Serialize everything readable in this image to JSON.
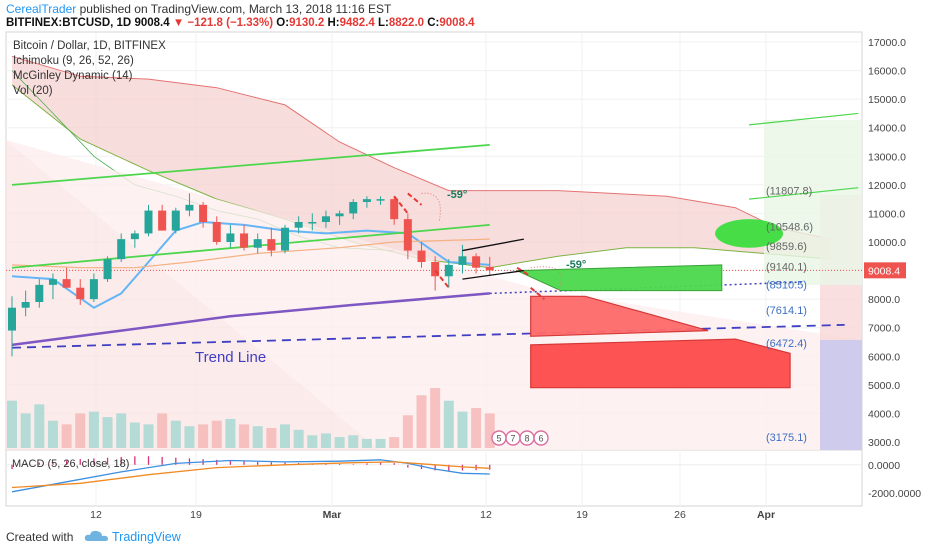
{
  "header": {
    "author": "CerealTrader",
    "published_text": "published on TradingView.com, March 13, 2018 11:16 EST",
    "symbol": "BITFINEX:BTCUSD, 1D",
    "last": "9008.4",
    "change": "−121.8 (−1.33%)",
    "o_label": "O:",
    "o_value": "9130.2",
    "h_label": "H:",
    "h_value": "9482.4",
    "l_label": "L:",
    "l_value": "8822.0",
    "c_label": "C:",
    "c_value": "9008.4"
  },
  "legend": {
    "title": "Bitcoin / Dollar, 1D, BITFINEX",
    "ichimoku": "Ichimoku (9, 26, 52, 26)",
    "mcginley": "McGinley Dynamic (14)",
    "vol": "Vol (20)"
  },
  "footer": {
    "created_with": "Created with",
    "brand": "TradingView"
  },
  "colors": {
    "up": "#26a69a",
    "down": "#ef5350",
    "cloud": "#f6d2d2",
    "mcginley": "#7e57c2",
    "tenkan": "#64b5f6",
    "kijun": "#f4b183",
    "channel": "#4cd64c",
    "trend": "#3f3fc4"
  },
  "chart_data": [
    {
      "type": "line",
      "title": "",
      "yaxis": {
        "ylim": [
          2700,
          17400
        ],
        "ticks": [
          "17000.0",
          "16000.0",
          "15000.0",
          "14000.0",
          "13000.0",
          "12000.0",
          "11000.0",
          "10000.0",
          "9000.0",
          "8000.0",
          "7000.0",
          "6000.0",
          "5000.0",
          "4000.0",
          "3000.0"
        ],
        "position": "right"
      },
      "xaxis": {
        "ticks": [
          "12",
          "19",
          "Mar",
          "12",
          "19",
          "26",
          "Apr"
        ]
      },
      "last_price_label": "9008.4",
      "candles": [
        {
          "d": 0,
          "o": 6900,
          "h": 8100,
          "l": 6000,
          "c": 7700
        },
        {
          "d": 1,
          "o": 7700,
          "h": 8300,
          "l": 7400,
          "c": 7900
        },
        {
          "d": 2,
          "o": 7900,
          "h": 8700,
          "l": 7700,
          "c": 8500
        },
        {
          "d": 3,
          "o": 8500,
          "h": 8900,
          "l": 8000,
          "c": 8700
        },
        {
          "d": 4,
          "o": 8700,
          "h": 9100,
          "l": 8400,
          "c": 8400
        },
        {
          "d": 5,
          "o": 8400,
          "h": 8700,
          "l": 7800,
          "c": 8000
        },
        {
          "d": 6,
          "o": 8000,
          "h": 8900,
          "l": 7900,
          "c": 8700
        },
        {
          "d": 7,
          "o": 8700,
          "h": 9500,
          "l": 8600,
          "c": 9400
        },
        {
          "d": 8,
          "o": 9400,
          "h": 10300,
          "l": 9300,
          "c": 10100
        },
        {
          "d": 9,
          "o": 10100,
          "h": 10400,
          "l": 9800,
          "c": 10300
        },
        {
          "d": 10,
          "o": 10300,
          "h": 11300,
          "l": 10200,
          "c": 11100
        },
        {
          "d": 11,
          "o": 11100,
          "h": 11300,
          "l": 10400,
          "c": 10400
        },
        {
          "d": 12,
          "o": 10400,
          "h": 11200,
          "l": 10300,
          "c": 11100
        },
        {
          "d": 13,
          "o": 11100,
          "h": 11700,
          "l": 10900,
          "c": 11300
        },
        {
          "d": 14,
          "o": 11300,
          "h": 11400,
          "l": 10500,
          "c": 10700
        },
        {
          "d": 15,
          "o": 10700,
          "h": 10900,
          "l": 9900,
          "c": 10000
        },
        {
          "d": 16,
          "o": 10000,
          "h": 10600,
          "l": 9800,
          "c": 10300
        },
        {
          "d": 17,
          "o": 10300,
          "h": 10600,
          "l": 9700,
          "c": 9800
        },
        {
          "d": 18,
          "o": 9800,
          "h": 10300,
          "l": 9600,
          "c": 10100
        },
        {
          "d": 19,
          "o": 10100,
          "h": 10500,
          "l": 9500,
          "c": 9700
        },
        {
          "d": 20,
          "o": 9700,
          "h": 10600,
          "l": 9600,
          "c": 10500
        },
        {
          "d": 21,
          "o": 10500,
          "h": 10900,
          "l": 10300,
          "c": 10700
        },
        {
          "d": 22,
          "o": 10700,
          "h": 11000,
          "l": 10400,
          "c": 10700
        },
        {
          "d": 23,
          "o": 10700,
          "h": 11100,
          "l": 10500,
          "c": 10900
        },
        {
          "d": 24,
          "o": 10900,
          "h": 11100,
          "l": 10600,
          "c": 11000
        },
        {
          "d": 25,
          "o": 11000,
          "h": 11500,
          "l": 10800,
          "c": 11400
        },
        {
          "d": 26,
          "o": 11400,
          "h": 11600,
          "l": 11200,
          "c": 11500
        },
        {
          "d": 27,
          "o": 11500,
          "h": 11600,
          "l": 11300,
          "c": 11500
        },
        {
          "d": 28,
          "o": 11500,
          "h": 11600,
          "l": 10600,
          "c": 10800
        },
        {
          "d": 29,
          "o": 10800,
          "h": 11000,
          "l": 9400,
          "c": 9700
        },
        {
          "d": 30,
          "o": 9700,
          "h": 10000,
          "l": 9100,
          "c": 9300
        },
        {
          "d": 31,
          "o": 9300,
          "h": 9500,
          "l": 8300,
          "c": 8800
        },
        {
          "d": 32,
          "o": 8800,
          "h": 9400,
          "l": 8400,
          "c": 9200
        },
        {
          "d": 33,
          "o": 9200,
          "h": 9900,
          "l": 8900,
          "c": 9500
        },
        {
          "d": 34,
          "o": 9500,
          "h": 9600,
          "l": 8900,
          "c": 9100
        },
        {
          "d": 35,
          "o": 9130.2,
          "h": 9482.4,
          "l": 8822.0,
          "c": 9008.4
        }
      ],
      "volume": [
        2600,
        1900,
        2400,
        1500,
        1300,
        1900,
        2000,
        1700,
        1900,
        1400,
        1300,
        1900,
        1500,
        1200,
        1300,
        1500,
        1600,
        1300,
        1200,
        1100,
        1300,
        1000,
        700,
        800,
        600,
        700,
        500,
        500,
        600,
        1800,
        2900,
        3300,
        2600,
        2000,
        2200,
        1900
      ],
      "tenkan": [
        {
          "d": 0,
          "v": 8800
        },
        {
          "d": 3,
          "v": 8700
        },
        {
          "d": 6,
          "v": 7700
        },
        {
          "d": 8,
          "v": 8200
        },
        {
          "d": 10,
          "v": 9300
        },
        {
          "d": 12,
          "v": 10400
        },
        {
          "d": 14,
          "v": 10700
        },
        {
          "d": 17,
          "v": 10600
        },
        {
          "d": 20,
          "v": 10400
        },
        {
          "d": 23,
          "v": 10300
        },
        {
          "d": 26,
          "v": 10400
        },
        {
          "d": 29,
          "v": 10300
        },
        {
          "d": 32,
          "v": 9300
        },
        {
          "d": 35,
          "v": 9200
        }
      ],
      "kijun": [
        {
          "d": 0,
          "v": 9200
        },
        {
          "d": 5,
          "v": 9100
        },
        {
          "d": 9,
          "v": 9100
        },
        {
          "d": 13,
          "v": 9300
        },
        {
          "d": 18,
          "v": 9600
        },
        {
          "d": 24,
          "v": 9800
        },
        {
          "d": 28,
          "v": 10000
        },
        {
          "d": 35,
          "v": 10100
        }
      ],
      "mcginley": [
        {
          "d": 0,
          "v": 6400
        },
        {
          "d": 8,
          "v": 6900
        },
        {
          "d": 16,
          "v": 7400
        },
        {
          "d": 25,
          "v": 7800
        },
        {
          "d": 35,
          "v": 8200
        }
      ],
      "cloud_upper": [
        {
          "d": 0,
          "v": 16500
        },
        {
          "d": 5,
          "v": 15800
        },
        {
          "d": 10,
          "v": 15700
        },
        {
          "d": 15,
          "v": 15400
        },
        {
          "d": 20,
          "v": 14800
        },
        {
          "d": 24,
          "v": 13500
        },
        {
          "d": 28,
          "v": 12600
        },
        {
          "d": 32,
          "v": 11800
        },
        {
          "d": 40,
          "v": 11800
        },
        {
          "d": 48,
          "v": 11600
        },
        {
          "d": 53,
          "v": 11200
        },
        {
          "d": 56,
          "v": 10500
        },
        {
          "d": 60,
          "v": 10100
        }
      ],
      "cloud_lower": [
        {
          "d": 0,
          "v": 15500
        },
        {
          "d": 5,
          "v": 13600
        },
        {
          "d": 10,
          "v": 12500
        },
        {
          "d": 15,
          "v": 11500
        },
        {
          "d": 20,
          "v": 10800
        },
        {
          "d": 25,
          "v": 10000
        },
        {
          "d": 30,
          "v": 9400
        },
        {
          "d": 35,
          "v": 9100
        },
        {
          "d": 40,
          "v": 9500
        },
        {
          "d": 45,
          "v": 9800
        },
        {
          "d": 50,
          "v": 9800
        },
        {
          "d": 55,
          "v": 9600
        },
        {
          "d": 60,
          "v": 9400
        }
      ],
      "lagging_span": [
        {
          "d": 0,
          "v": 16000
        },
        {
          "d": 3,
          "v": 14500
        },
        {
          "d": 6,
          "v": 13000
        },
        {
          "d": 9,
          "v": 12000
        },
        {
          "d": 12,
          "v": 11600
        },
        {
          "d": 15,
          "v": 11100
        },
        {
          "d": 18,
          "v": 10800
        },
        {
          "d": 21,
          "v": 10200
        },
        {
          "d": 24,
          "v": 9800
        },
        {
          "d": 28,
          "v": 9700
        }
      ],
      "channel_upper": {
        "from": {
          "d": 0,
          "v": 12000
        },
        "to": {
          "d": 35,
          "v": 13400
        }
      },
      "channel_lower": {
        "from": {
          "d": 0,
          "v": 9100
        },
        "to": {
          "d": 35,
          "v": 10600
        }
      },
      "channel_right_upper": {
        "from": {
          "d": 54,
          "v": 14100
        },
        "to": {
          "d": 62,
          "v": 14500
        }
      },
      "channel_right_lower": {
        "from": {
          "d": 54,
          "v": 11500
        },
        "to": {
          "d": 62,
          "v": 11900
        }
      },
      "trend_line": {
        "label": "Trend Line",
        "from": {
          "d": 0,
          "v": 6300
        },
        "to": {
          "d": 61,
          "v": 7100
        }
      },
      "mcginley_projection": {
        "from": {
          "d": 35,
          "v": 8200
        },
        "to": {
          "d": 58,
          "v": 8600
        }
      },
      "angle_label": "-59°",
      "angle_label_2": "-59°",
      "price_labels": [
        {
          "v": 11807.8,
          "text": "(11807.8)"
        },
        {
          "v": 10548.6,
          "text": "(10548.6)"
        },
        {
          "v": 9859.6,
          "text": "(9859.6)"
        },
        {
          "v": 9140.1,
          "text": "(9140.1)"
        },
        {
          "v": 8510.5,
          "text": "(8510.5)"
        },
        {
          "v": 7614.1,
          "text": "(7614.1)"
        },
        {
          "v": 6472.4,
          "text": "(6472.4)"
        },
        {
          "v": 3175.1,
          "text": "(3175.1)"
        }
      ],
      "green_box": {
        "from": {
          "d": 38,
          "v": 9200
        },
        "to": {
          "d": 52,
          "v": 8300
        }
      },
      "green_ellipse": {
        "center": {
          "d": 54,
          "v": 10300
        },
        "v_span": 1000
      },
      "red_triangle": {
        "points": [
          {
            "d": 38,
            "v": 8100
          },
          {
            "d": 42,
            "v": 8100
          },
          {
            "d": 51,
            "v": 6900
          },
          {
            "d": 38,
            "v": 6700
          }
        ]
      },
      "red_box": {
        "points": [
          {
            "d": 38,
            "v": 6400
          },
          {
            "d": 53,
            "v": 6600
          },
          {
            "d": 57,
            "v": 6100
          },
          {
            "d": 57,
            "v": 4900
          },
          {
            "d": 38,
            "v": 4900
          }
        ]
      },
      "event_markers": [
        "5",
        "7",
        "8",
        "6"
      ]
    },
    {
      "type": "line",
      "title": "MACD (5, 26, close, 18)",
      "yaxis": {
        "ticks": [
          "0.0000",
          "-2000.0000"
        ],
        "ylim": [
          -2900,
          900
        ],
        "position": "right"
      },
      "macd": [
        {
          "d": 0,
          "v": -1900
        },
        {
          "d": 4,
          "v": -1200
        },
        {
          "d": 8,
          "v": -500
        },
        {
          "d": 12,
          "v": 100
        },
        {
          "d": 16,
          "v": 300
        },
        {
          "d": 20,
          "v": 200
        },
        {
          "d": 24,
          "v": 250
        },
        {
          "d": 27,
          "v": 350
        },
        {
          "d": 29,
          "v": 100
        },
        {
          "d": 31,
          "v": -300
        },
        {
          "d": 33,
          "v": -600
        },
        {
          "d": 35,
          "v": -650
        }
      ],
      "signal": [
        {
          "d": 0,
          "v": -1600
        },
        {
          "d": 5,
          "v": -1300
        },
        {
          "d": 10,
          "v": -700
        },
        {
          "d": 15,
          "v": -200
        },
        {
          "d": 20,
          "v": 0
        },
        {
          "d": 25,
          "v": 150
        },
        {
          "d": 28,
          "v": 200
        },
        {
          "d": 31,
          "v": 0
        },
        {
          "d": 33,
          "v": -150
        },
        {
          "d": 35,
          "v": -250
        }
      ],
      "histogram": [
        -300,
        100,
        150,
        200,
        300,
        400,
        450,
        500,
        550,
        600,
        600,
        550,
        500,
        450,
        400,
        350,
        300,
        250,
        200,
        180,
        150,
        120,
        100,
        80,
        60,
        40,
        100,
        150,
        120,
        -200,
        -300,
        -400,
        -450,
        -400,
        -380,
        -350
      ]
    }
  ]
}
